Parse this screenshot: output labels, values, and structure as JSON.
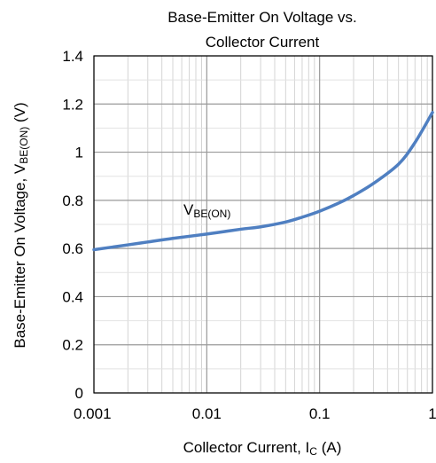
{
  "chart_data": {
    "type": "line",
    "title_line1": "Base-Emitter On Voltage vs.",
    "title_line2": "Collector Current",
    "xlabel_main": "Collector Current, I",
    "xlabel_sub": "C",
    "xlabel_unit": " (A)",
    "ylabel_main": "Base-Emitter On Voltage, V",
    "ylabel_sub": "BE(ON)",
    "ylabel_unit": " (V)",
    "x_scale": "log",
    "xlim": [
      0.001,
      1
    ],
    "ylim": [
      0,
      1.4
    ],
    "x_ticks": [
      0.001,
      0.01,
      0.1,
      1
    ],
    "x_tick_labels": [
      "0.001",
      "0.01",
      "0.1",
      "1"
    ],
    "y_ticks": [
      0,
      0.2,
      0.4,
      0.6,
      0.8,
      1,
      1.2,
      1.4
    ],
    "y_tick_labels": [
      "0",
      "0.2",
      "0.4",
      "0.6",
      "0.8",
      "1",
      "1.2",
      "1.4"
    ],
    "grid": true,
    "series": [
      {
        "name_main": "V",
        "name_sub": "BE(ON)",
        "color": "#4f7fc1",
        "x": [
          0.001,
          0.002,
          0.003,
          0.005,
          0.01,
          0.02,
          0.03,
          0.05,
          0.07,
          0.1,
          0.15,
          0.2,
          0.3,
          0.5,
          0.7,
          1
        ],
        "y": [
          0.595,
          0.615,
          0.627,
          0.642,
          0.66,
          0.68,
          0.69,
          0.71,
          0.73,
          0.755,
          0.79,
          0.82,
          0.87,
          0.95,
          1.04,
          1.165
        ]
      }
    ]
  }
}
